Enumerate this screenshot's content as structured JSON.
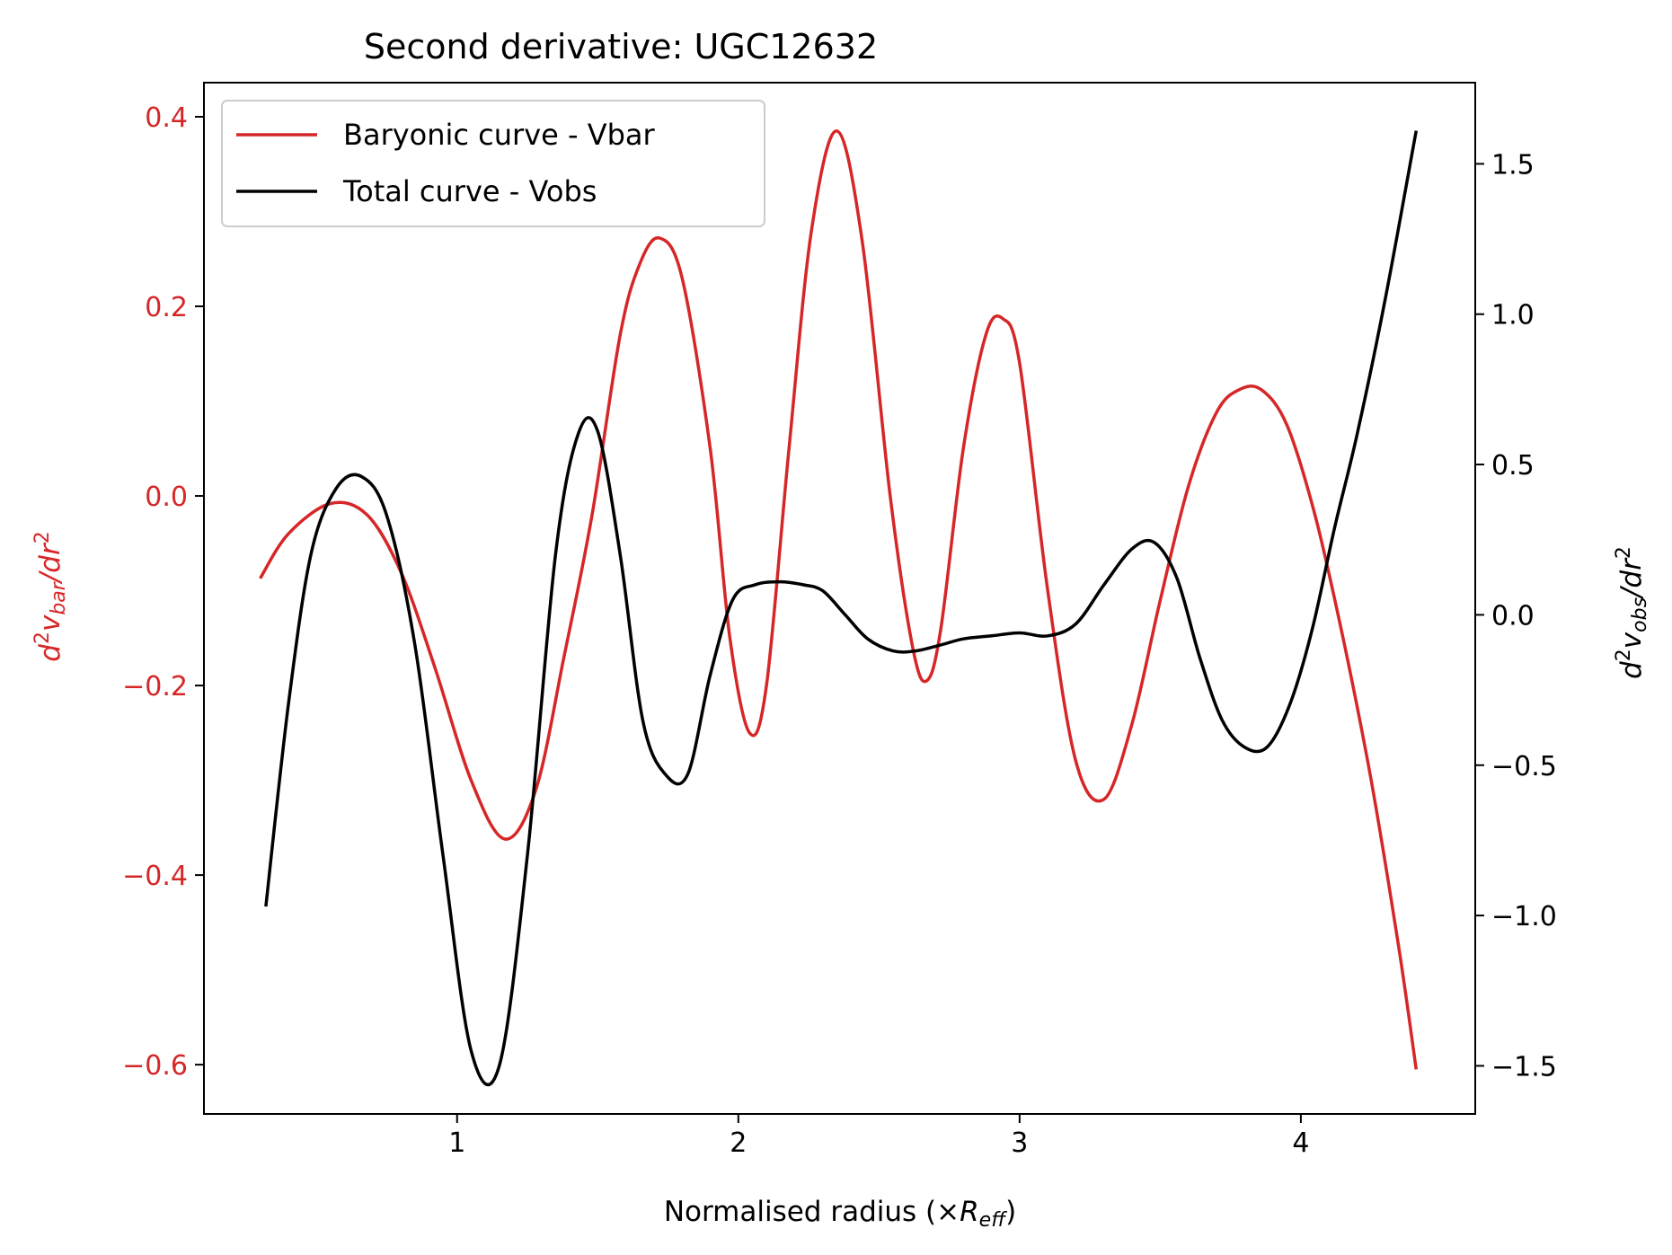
{
  "chart_data": {
    "type": "line",
    "title": "Second derivative: UGC12632",
    "xlabel": {
      "prefix": "Normalised radius (×",
      "main": "R",
      "sub": "eff",
      "suffix": ")"
    },
    "ylabel_left": {
      "pre": "d",
      "sup1": "2",
      "v": "v",
      "sub": "bar",
      "post": "/dr",
      "sup2": "2"
    },
    "ylabel_right": {
      "pre": "d",
      "sup1": "2",
      "v": "v",
      "sub": "obs",
      "post": "/dr",
      "sup2": "2"
    },
    "xlim": [
      0.1,
      4.62
    ],
    "ylim_left": [
      -0.652,
      0.436
    ],
    "ylim_right": [
      -1.66,
      1.77
    ],
    "x_ticks": [
      1,
      2,
      3,
      4
    ],
    "x_tick_labels": [
      "1",
      "2",
      "3",
      "4"
    ],
    "y_left_ticks": [
      0.4,
      0.2,
      0.0,
      -0.2,
      -0.4,
      -0.6
    ],
    "y_left_tick_labels": [
      "0.4",
      "0.2",
      "0.0",
      "−0.2",
      "−0.4",
      "−0.6"
    ],
    "y_right_ticks": [
      1.5,
      1.0,
      0.5,
      0.0,
      -0.5,
      -1.0,
      -1.5
    ],
    "y_right_tick_labels": [
      "1.5",
      "1.0",
      "0.5",
      "0.0",
      "−0.5",
      "−1.0",
      "−1.5"
    ],
    "grid": false,
    "legend_position": "top-left",
    "colors": {
      "vbar": "#d62728",
      "vobs": "#000000",
      "left_axis": "#d62728",
      "right_axis": "#000000"
    },
    "series": [
      {
        "name": "Baryonic curve - Vbar",
        "axis": "left",
        "color": "#d62728",
        "x": [
          0.3,
          0.4,
          0.55,
          0.68,
          0.8,
          0.92,
          1.05,
          1.17,
          1.28,
          1.38,
          1.48,
          1.58,
          1.65,
          1.72,
          1.8,
          1.9,
          1.97,
          2.04,
          2.1,
          2.18,
          2.26,
          2.35,
          2.44,
          2.54,
          2.62,
          2.67,
          2.72,
          2.8,
          2.88,
          2.94,
          3.0,
          3.1,
          3.2,
          3.3,
          3.4,
          3.5,
          3.6,
          3.7,
          3.78,
          3.86,
          3.95,
          4.05,
          4.15,
          4.25,
          4.35,
          4.41
        ],
        "y": [
          -0.087,
          -0.04,
          -0.008,
          -0.02,
          -0.08,
          -0.18,
          -0.3,
          -0.362,
          -0.31,
          -0.17,
          -0.02,
          0.17,
          0.245,
          0.272,
          0.23,
          0.05,
          -0.15,
          -0.25,
          -0.2,
          0.05,
          0.28,
          0.385,
          0.27,
          0.0,
          -0.16,
          -0.195,
          -0.14,
          0.05,
          0.17,
          0.187,
          0.14,
          -0.1,
          -0.28,
          -0.32,
          -0.24,
          -0.11,
          0.01,
          0.088,
          0.112,
          0.112,
          0.075,
          -0.02,
          -0.15,
          -0.3,
          -0.48,
          -0.605
        ]
      },
      {
        "name": "Total curve - Vobs",
        "axis": "right",
        "color": "#000000",
        "x": [
          0.32,
          0.4,
          0.48,
          0.57,
          0.66,
          0.75,
          0.85,
          0.95,
          1.05,
          1.15,
          1.25,
          1.35,
          1.43,
          1.5,
          1.58,
          1.66,
          1.74,
          1.82,
          1.9,
          1.98,
          2.06,
          2.15,
          2.23,
          2.3,
          2.38,
          2.46,
          2.55,
          2.63,
          2.72,
          2.8,
          2.9,
          3.0,
          3.1,
          3.2,
          3.3,
          3.4,
          3.48,
          3.56,
          3.64,
          3.72,
          3.8,
          3.88,
          3.96,
          4.04,
          4.12,
          4.2,
          4.3,
          4.41
        ],
        "y": [
          -0.97,
          -0.3,
          0.2,
          0.42,
          0.46,
          0.33,
          -0.1,
          -0.8,
          -1.45,
          -1.5,
          -0.8,
          0.2,
          0.6,
          0.61,
          0.2,
          -0.35,
          -0.53,
          -0.53,
          -0.2,
          0.05,
          0.1,
          0.11,
          0.1,
          0.08,
          0.0,
          -0.08,
          -0.12,
          -0.12,
          -0.1,
          -0.08,
          -0.07,
          -0.06,
          -0.07,
          -0.03,
          0.1,
          0.22,
          0.24,
          0.12,
          -0.14,
          -0.35,
          -0.44,
          -0.44,
          -0.3,
          -0.05,
          0.29,
          0.6,
          1.05,
          1.61
        ]
      }
    ]
  }
}
